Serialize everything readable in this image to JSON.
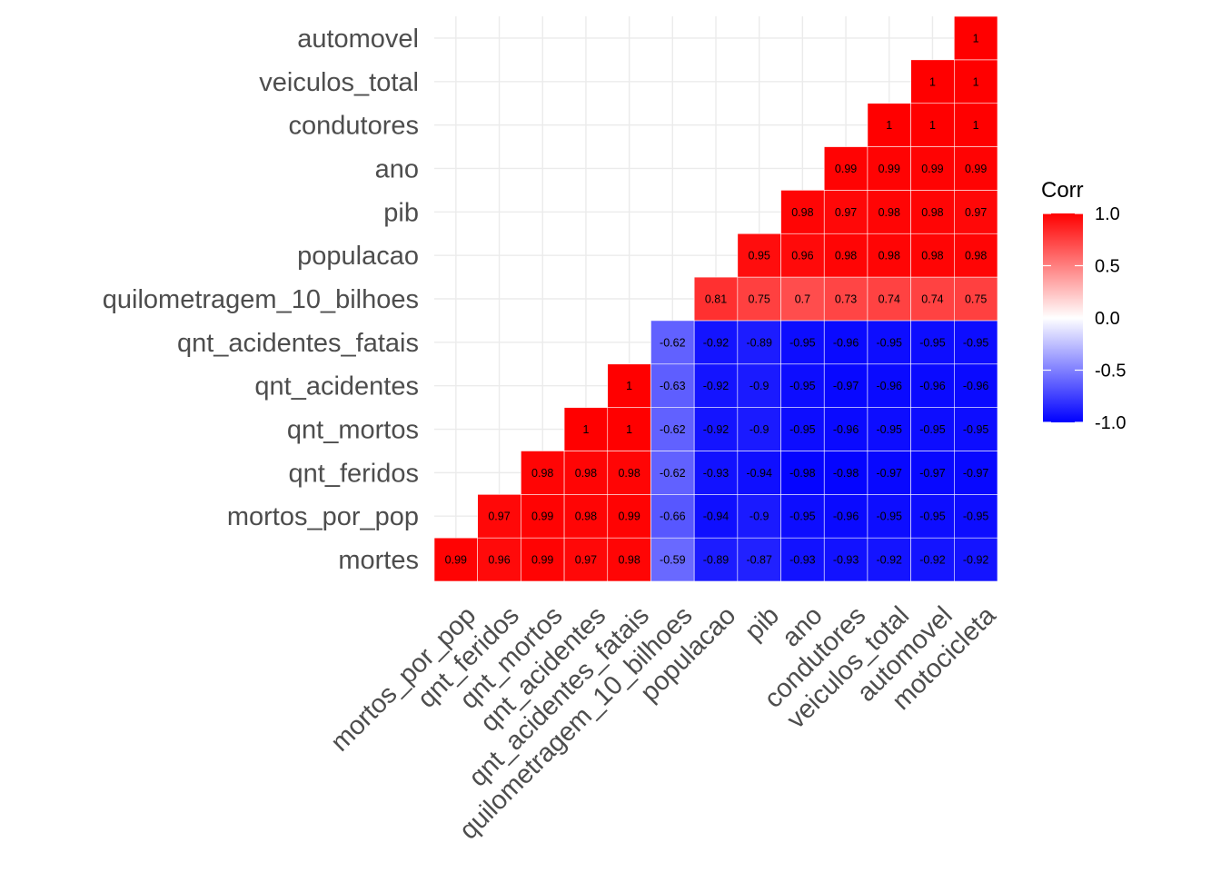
{
  "chart_data": {
    "type": "heatmap",
    "title": "",
    "xlabel": "",
    "ylabel": "",
    "x_categories": [
      "mortos_por_pop",
      "qnt_feridos",
      "qnt_mortos",
      "qnt_acidentes",
      "qnt_acidentes_fatais",
      "quilometragem_10_bilhoes",
      "populacao",
      "pib",
      "ano",
      "condutores",
      "veiculos_total",
      "automovel",
      "motocicleta"
    ],
    "y_categories": [
      "mortes",
      "mortos_por_pop",
      "qnt_feridos",
      "qnt_mortos",
      "qnt_acidentes",
      "qnt_acidentes_fatais",
      "quilometragem_10_bilhoes",
      "populacao",
      "pib",
      "ano",
      "condutores",
      "veiculos_total",
      "automovel"
    ],
    "values": [
      [
        "0.99",
        "0.96",
        "0.99",
        "0.97",
        "0.98",
        "-0.59",
        "-0.89",
        "-0.87",
        "-0.93",
        "-0.93",
        "-0.92",
        "-0.92",
        "-0.92"
      ],
      [
        null,
        "0.97",
        "0.99",
        "0.98",
        "0.99",
        "-0.66",
        "-0.94",
        "-0.9",
        "-0.95",
        "-0.96",
        "-0.95",
        "-0.95",
        "-0.95"
      ],
      [
        null,
        null,
        "0.98",
        "0.98",
        "0.98",
        "-0.62",
        "-0.93",
        "-0.94",
        "-0.98",
        "-0.98",
        "-0.97",
        "-0.97",
        "-0.97"
      ],
      [
        null,
        null,
        null,
        "1",
        "1",
        "-0.62",
        "-0.92",
        "-0.9",
        "-0.95",
        "-0.96",
        "-0.95",
        "-0.95",
        "-0.95"
      ],
      [
        null,
        null,
        null,
        null,
        "1",
        "-0.63",
        "-0.92",
        "-0.9",
        "-0.95",
        "-0.97",
        "-0.96",
        "-0.96",
        "-0.96"
      ],
      [
        null,
        null,
        null,
        null,
        null,
        "-0.62",
        "-0.92",
        "-0.89",
        "-0.95",
        "-0.96",
        "-0.95",
        "-0.95",
        "-0.95"
      ],
      [
        null,
        null,
        null,
        null,
        null,
        null,
        "0.81",
        "0.75",
        "0.7",
        "0.73",
        "0.74",
        "0.74",
        "0.75"
      ],
      [
        null,
        null,
        null,
        null,
        null,
        null,
        null,
        "0.95",
        "0.96",
        "0.98",
        "0.98",
        "0.98",
        "0.98"
      ],
      [
        null,
        null,
        null,
        null,
        null,
        null,
        null,
        null,
        "0.98",
        "0.97",
        "0.98",
        "0.98",
        "0.97"
      ],
      [
        null,
        null,
        null,
        null,
        null,
        null,
        null,
        null,
        null,
        "0.99",
        "0.99",
        "0.99",
        "0.99"
      ],
      [
        null,
        null,
        null,
        null,
        null,
        null,
        null,
        null,
        null,
        null,
        "1",
        "1",
        "1"
      ],
      [
        null,
        null,
        null,
        null,
        null,
        null,
        null,
        null,
        null,
        null,
        null,
        "1",
        "1"
      ],
      [
        null,
        null,
        null,
        null,
        null,
        null,
        null,
        null,
        null,
        null,
        null,
        null,
        "1"
      ]
    ],
    "color_scale": {
      "low": "#0000ff",
      "mid": "#ffffff",
      "high": "#ff0000",
      "limits": [
        -1,
        1
      ]
    },
    "legend": {
      "title": "Corr",
      "position": "right",
      "ticks": [
        "1.0",
        "0.5",
        "0.0",
        "-0.5",
        "-1.0"
      ],
      "tick_values": [
        1.0,
        0.5,
        0.0,
        -0.5,
        -1.0
      ]
    },
    "grid": true
  }
}
